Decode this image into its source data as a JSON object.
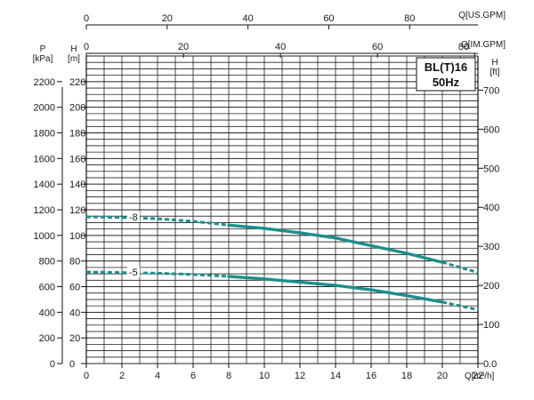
{
  "chart_data": {
    "type": "line",
    "title": "BL(T)16",
    "subtitle": "50Hz",
    "x_axis": {
      "label": "Q[m³/h]",
      "range": [
        0,
        22
      ],
      "ticks": [
        "0",
        "2",
        "4",
        "6",
        "8",
        "10",
        "12",
        "14",
        "16",
        "18",
        "20",
        "22"
      ]
    },
    "x_axis_top_usgpm": {
      "label": "Q[US.GPM]",
      "range": [
        0,
        96.9
      ],
      "ticks": [
        0,
        20,
        40,
        60,
        80
      ]
    },
    "x_axis_top_imgpm": {
      "label": "Q[IM.GPM]",
      "range": [
        0,
        80.7
      ],
      "ticks": [
        0,
        20,
        40,
        60,
        80
      ]
    },
    "y_axis_head_m": {
      "label": "H",
      "unit": "[m]",
      "range": [
        0,
        240
      ],
      "ticks": [
        "0",
        "20",
        "40",
        "60",
        "80",
        "100",
        "120",
        "140",
        "160",
        "180",
        "200",
        "220"
      ]
    },
    "y_axis_pressure_kpa": {
      "label": "P",
      "unit": "[kPa]",
      "ticks": [
        "0",
        "200",
        "400",
        "600",
        "800",
        "1000",
        "1200",
        "1400",
        "1600",
        "1800",
        "2000",
        "2200"
      ]
    },
    "y_axis_head_ft": {
      "label": "H",
      "unit": "[ft]",
      "ticks": [
        {
          "label": "0.0",
          "ft": 0
        },
        {
          "label": "100",
          "ft": 100
        },
        {
          "label": "200",
          "ft": 200
        },
        {
          "label": "300",
          "ft": 300
        },
        {
          "label": "400",
          "ft": 400
        },
        {
          "label": "500",
          "ft": 500
        },
        {
          "label": "600",
          "ft": 600
        },
        {
          "label": "700",
          "ft": 700
        }
      ]
    },
    "grid": true,
    "series": [
      {
        "name": "-8",
        "color": "#1c8f8c",
        "points": [
          {
            "x": 0,
            "y": 114.5,
            "style": "dashed"
          },
          {
            "x": 2,
            "y": 114,
            "style": "dashed"
          },
          {
            "x": 4,
            "y": 113,
            "style": "dashed"
          },
          {
            "x": 6,
            "y": 111,
            "style": "dashed"
          },
          {
            "x": 8,
            "y": 108,
            "style": "solid"
          },
          {
            "x": 10,
            "y": 105.5,
            "style": "solid"
          },
          {
            "x": 12,
            "y": 102,
            "style": "solid"
          },
          {
            "x": 14,
            "y": 98,
            "style": "solid"
          },
          {
            "x": 16,
            "y": 92,
            "style": "solid"
          },
          {
            "x": 18,
            "y": 86,
            "style": "solid"
          },
          {
            "x": 20,
            "y": 79,
            "style": "dashed"
          },
          {
            "x": 22,
            "y": 71,
            "style": "dashed"
          }
        ]
      },
      {
        "name": "-5",
        "color": "#1c8f8c",
        "points": [
          {
            "x": 0,
            "y": 71.5,
            "style": "dashed"
          },
          {
            "x": 2,
            "y": 71,
            "style": "dashed"
          },
          {
            "x": 4,
            "y": 70.5,
            "style": "dashed"
          },
          {
            "x": 6,
            "y": 69.5,
            "style": "dashed"
          },
          {
            "x": 8,
            "y": 68,
            "style": "solid"
          },
          {
            "x": 10,
            "y": 66,
            "style": "solid"
          },
          {
            "x": 12,
            "y": 63.5,
            "style": "solid"
          },
          {
            "x": 14,
            "y": 61,
            "style": "solid"
          },
          {
            "x": 16,
            "y": 57.5,
            "style": "solid"
          },
          {
            "x": 18,
            "y": 53,
            "style": "solid"
          },
          {
            "x": 20,
            "y": 48,
            "style": "dashed"
          },
          {
            "x": 22,
            "y": 42,
            "style": "dashed"
          }
        ]
      }
    ]
  }
}
